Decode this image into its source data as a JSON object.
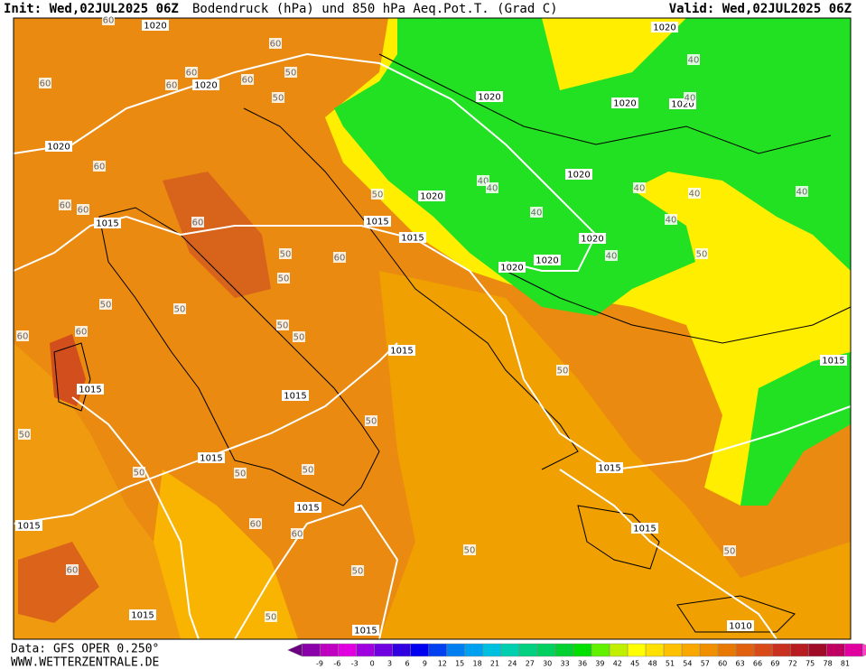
{
  "header": {
    "init": "Init: Wed,02JUL2025 06Z",
    "title": "Bodendruck (hPa) und 850 hPa Aeq.Pot.T. (Grad C)",
    "valid": "Valid: Wed,02JUL2025 06Z"
  },
  "footer": {
    "data_source": "Data: GFS OPER 0.250°",
    "website": "WWW.WETTERZENTRALE.DE"
  },
  "colorbar": {
    "labels": [
      -9,
      -6,
      -3,
      0,
      3,
      6,
      9,
      12,
      15,
      18,
      21,
      24,
      27,
      30,
      33,
      36,
      39,
      42,
      45,
      48,
      51,
      54,
      57,
      60,
      63,
      66,
      69,
      72,
      75,
      78,
      81
    ],
    "colors": [
      "#6a0080",
      "#8a00a8",
      "#c000c0",
      "#e000e0",
      "#a000e0",
      "#7000e0",
      "#3000e0",
      "#0000f0",
      "#0040f0",
      "#0080f0",
      "#00a0f0",
      "#00c0e0",
      "#00d0b0",
      "#00d080",
      "#00d060",
      "#00d030",
      "#00e000",
      "#60f000",
      "#c0f000",
      "#ffff00",
      "#ffe000",
      "#ffc000",
      "#f8a800",
      "#f09000",
      "#e87800",
      "#e06010",
      "#d84a18",
      "#c83020",
      "#b81c20",
      "#a00c28",
      "#c00060",
      "#e000a0",
      "#ff40c0"
    ]
  },
  "map": {
    "contour_labels": [
      "1020",
      "1020",
      "1020",
      "1020",
      "1020",
      "1020",
      "1020",
      "1020",
      "1020",
      "1020",
      "1020",
      "1020",
      "1015",
      "1015",
      "1015",
      "1015",
      "1015",
      "1015",
      "1015",
      "1015",
      "1015",
      "1015",
      "1015",
      "1015",
      "1015",
      "1015",
      "1010",
      "60",
      "60",
      "60",
      "60",
      "60",
      "60",
      "60",
      "60",
      "60",
      "60",
      "60",
      "60",
      "60",
      "60",
      "60",
      "60",
      "50",
      "50",
      "50",
      "50",
      "50",
      "50",
      "50",
      "50",
      "50",
      "50",
      "50",
      "50",
      "50",
      "50",
      "50",
      "50",
      "50",
      "50",
      "50",
      "50",
      "40",
      "40",
      "40",
      "40",
      "40",
      "40",
      "40",
      "40",
      "40",
      "40"
    ]
  }
}
